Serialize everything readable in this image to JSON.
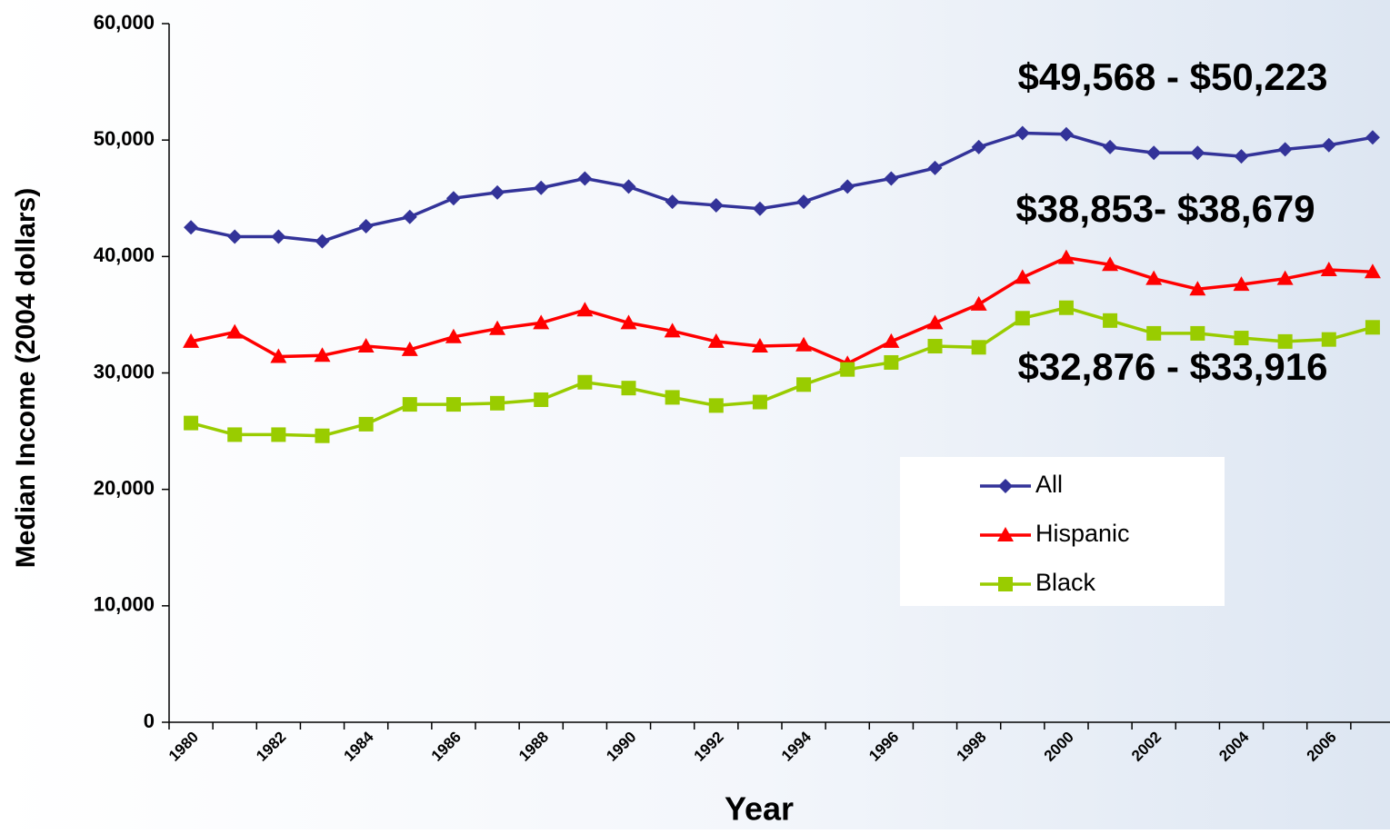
{
  "chart_data": {
    "type": "line",
    "y_label": "Median Income (2004 dollars)",
    "x_label": "Year",
    "categories": [
      "1980",
      null,
      "1982",
      null,
      "1984",
      null,
      "1986",
      null,
      "1988",
      null,
      "1990",
      null,
      "1992",
      null,
      "1994",
      null,
      "1996",
      null,
      "1998",
      null,
      "2000",
      null,
      "2002",
      null,
      "2004",
      null,
      "2006",
      null
    ],
    "series": [
      {
        "name": "All",
        "color": "#333399",
        "marker": "diamond",
        "values": [
          42500,
          41700,
          41700,
          41300,
          42600,
          43400,
          45000,
          45500,
          45900,
          46700,
          46000,
          44700,
          44400,
          44100,
          44700,
          46000,
          46700,
          47600,
          49400,
          50600,
          50500,
          49400,
          48900,
          48900,
          48600,
          49200,
          49568,
          50223
        ]
      },
      {
        "name": "Hispanic",
        "color": "#ff0000",
        "marker": "triangle",
        "values": [
          32700,
          33500,
          31400,
          31500,
          32300,
          32000,
          33100,
          33800,
          34300,
          35400,
          34300,
          33600,
          32700,
          32300,
          32400,
          30800,
          32700,
          34300,
          35900,
          38200,
          39900,
          39300,
          38100,
          37200,
          37600,
          38100,
          38853,
          38679
        ]
      },
      {
        "name": "Black",
        "color": "#99cc00",
        "marker": "square",
        "values": [
          25700,
          24700,
          24700,
          24600,
          25600,
          27300,
          27300,
          27400,
          27700,
          29200,
          28700,
          27900,
          27200,
          27500,
          29000,
          30300,
          30900,
          32300,
          32200,
          34700,
          35600,
          34500,
          33400,
          33400,
          33000,
          32700,
          32876,
          33916
        ]
      }
    ],
    "annotations": [
      "$49,568 - $50,223",
      "$38,853- $38,679",
      "$32,876 - $33,916"
    ],
    "ylim": [
      0,
      60000
    ],
    "yticks": [
      0,
      {
        "value": 10000,
        "label": "10,000"
      },
      {
        "value": 20000,
        "label": "20,000"
      },
      {
        "value": 30000,
        "label": "30,000"
      },
      {
        "value": 40000,
        "label": "40,000"
      },
      {
        "value": 50000,
        "label": "50,000"
      },
      {
        "value": 60000,
        "label": "60,000"
      }
    ],
    "legend": "right"
  }
}
